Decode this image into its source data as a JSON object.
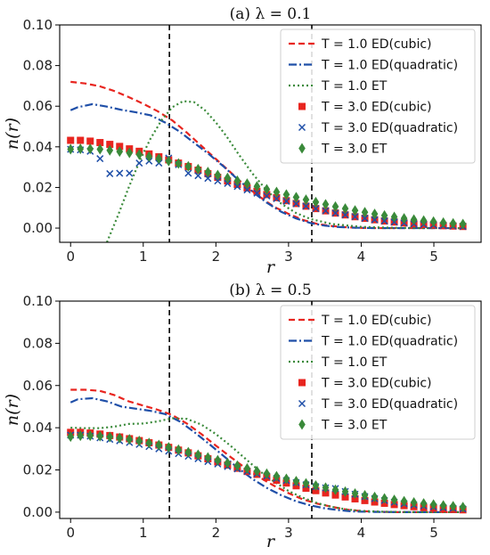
{
  "chart_data": [
    {
      "type": "line",
      "title": "(a) λ = 0.1",
      "xlabel": "r",
      "ylabel": "n(r)",
      "xlim": [
        -0.15,
        5.65
      ],
      "ylim": [
        -0.007,
        0.1
      ],
      "xticks": [
        0,
        1,
        2,
        3,
        4,
        5
      ],
      "xtick_labels": [
        "0",
        "1",
        "2",
        "3",
        "4",
        "5"
      ],
      "yticks": [
        0.0,
        0.02,
        0.04,
        0.06,
        0.08,
        0.1
      ],
      "ytick_labels": [
        "0.00",
        "0.02",
        "0.04",
        "0.06",
        "0.08",
        "0.10"
      ],
      "grid": false,
      "legend_position": "top-right",
      "vlines": [
        1.36,
        3.32
      ],
      "series": [
        {
          "name": "T = 1.0 ED(cubic)",
          "kind": "line",
          "style": "dashed",
          "color": "#e8251f",
          "x": [
            0,
            0.2,
            0.4,
            0.6,
            0.8,
            1.0,
            1.2,
            1.4,
            1.6,
            1.8,
            2.0,
            2.2,
            2.4,
            2.6,
            2.8,
            3.0,
            3.2,
            3.4,
            3.6,
            3.8,
            4.0,
            4.2,
            4.5,
            5.0,
            5.4
          ],
          "y": [
            0.072,
            0.0712,
            0.0698,
            0.0675,
            0.0645,
            0.0612,
            0.0575,
            0.053,
            0.047,
            0.0405,
            0.034,
            0.0275,
            0.021,
            0.0155,
            0.0105,
            0.007,
            0.004,
            0.002,
            0.001,
            0.0004,
            0.0001,
            0.0,
            0.0,
            0.0,
            0.0
          ]
        },
        {
          "name": "T = 1.0 ED(quadratic)",
          "kind": "line",
          "style": "dashdot",
          "color": "#1f4fa8",
          "x": [
            0,
            0.1,
            0.3,
            0.5,
            0.7,
            0.9,
            1.1,
            1.3,
            1.5,
            1.7,
            1.9,
            2.1,
            2.3,
            2.5,
            2.7,
            2.9,
            3.1,
            3.3,
            3.5,
            3.7,
            3.9,
            4.2,
            4.6,
            5.0,
            5.4
          ],
          "y": [
            0.058,
            0.0595,
            0.061,
            0.0598,
            0.0582,
            0.057,
            0.0555,
            0.052,
            0.0475,
            0.042,
            0.0365,
            0.0305,
            0.024,
            0.018,
            0.0125,
            0.008,
            0.0048,
            0.0025,
            0.0012,
            0.0005,
            0.0002,
            0.0,
            0.0,
            0.0,
            0.0
          ]
        },
        {
          "name": "T = 1.0 ET",
          "kind": "line",
          "style": "dotted",
          "color": "#3a8a3a",
          "x": [
            0.5,
            0.65,
            0.8,
            0.95,
            1.1,
            1.25,
            1.4,
            1.55,
            1.7,
            1.85,
            2.0,
            2.15,
            2.3,
            2.5,
            2.7,
            2.9,
            3.1,
            3.3,
            3.6,
            4.0,
            4.5,
            5.0,
            5.4
          ],
          "y": [
            -0.007,
            0.006,
            0.02,
            0.033,
            0.044,
            0.053,
            0.0595,
            0.0625,
            0.062,
            0.058,
            0.052,
            0.045,
            0.037,
            0.027,
            0.0185,
            0.012,
            0.0075,
            0.0045,
            0.002,
            0.0006,
            0.0001,
            0.0,
            0.0
          ]
        },
        {
          "name": "T = 3.0 ED(cubic)",
          "kind": "marker",
          "marker": "square",
          "color": "#e8251f",
          "x": [
            0.0,
            0.135,
            0.27,
            0.405,
            0.54,
            0.675,
            0.81,
            0.945,
            1.08,
            1.215,
            1.35,
            1.485,
            1.62,
            1.755,
            1.89,
            2.025,
            2.16,
            2.295,
            2.43,
            2.565,
            2.7,
            2.835,
            2.97,
            3.105,
            3.24,
            3.375,
            3.51,
            3.645,
            3.78,
            3.915,
            4.05,
            4.185,
            4.32,
            4.455,
            4.59,
            4.725,
            4.86,
            4.995,
            5.13,
            5.265,
            5.4
          ],
          "y": [
            0.0432,
            0.0432,
            0.0428,
            0.0421,
            0.0412,
            0.0402,
            0.039,
            0.0378,
            0.0365,
            0.0351,
            0.0336,
            0.032,
            0.0303,
            0.0285,
            0.0268,
            0.025,
            0.0232,
            0.0215,
            0.0198,
            0.0181,
            0.0165,
            0.015,
            0.0135,
            0.0121,
            0.0108,
            0.0096,
            0.0085,
            0.0074,
            0.0065,
            0.0056,
            0.0048,
            0.0041,
            0.0035,
            0.003,
            0.0025,
            0.0021,
            0.0018,
            0.0015,
            0.0012,
            0.001,
            0.0008
          ]
        },
        {
          "name": "T = 3.0 ED(quadratic)",
          "kind": "marker",
          "marker": "x",
          "color": "#1f4fa8",
          "x": [
            0.0,
            0.135,
            0.27,
            0.405,
            0.54,
            0.675,
            0.81,
            0.945,
            1.08,
            1.215,
            1.35,
            1.485,
            1.62,
            1.755,
            1.89,
            2.025,
            2.16,
            2.295,
            2.43,
            2.565,
            2.7,
            2.835,
            2.97,
            3.105,
            3.24,
            3.375,
            3.51,
            3.645,
            3.78,
            3.915,
            4.05,
            4.185,
            4.32,
            4.455,
            4.59,
            4.725,
            4.86,
            4.995,
            5.13,
            5.265,
            5.4
          ],
          "y": [
            0.0388,
            0.0385,
            0.0378,
            0.0342,
            0.0268,
            0.027,
            0.027,
            0.032,
            0.033,
            0.032,
            0.0345,
            0.0312,
            0.027,
            0.0258,
            0.0245,
            0.0232,
            0.022,
            0.0205,
            0.0188,
            0.0172,
            0.0158,
            0.0145,
            0.0132,
            0.012,
            0.0108,
            0.0096,
            0.0085,
            0.0074,
            0.0065,
            0.0056,
            0.0048,
            0.0041,
            0.0035,
            0.003,
            0.0025,
            0.0021,
            0.0018,
            0.0015,
            0.0012,
            0.001,
            0.0008
          ]
        },
        {
          "name": "T = 3.0 ET",
          "kind": "marker",
          "marker": "diamond",
          "color": "#3a8a3a",
          "x": [
            0.0,
            0.135,
            0.27,
            0.405,
            0.54,
            0.675,
            0.81,
            0.945,
            1.08,
            1.215,
            1.35,
            1.485,
            1.62,
            1.755,
            1.89,
            2.025,
            2.16,
            2.295,
            2.43,
            2.565,
            2.7,
            2.835,
            2.97,
            3.105,
            3.24,
            3.375,
            3.51,
            3.645,
            3.78,
            3.915,
            4.05,
            4.185,
            4.32,
            4.455,
            4.59,
            4.725,
            4.86,
            4.995,
            5.13,
            5.265,
            5.4
          ],
          "y": [
            0.0388,
            0.039,
            0.039,
            0.0388,
            0.0383,
            0.0377,
            0.037,
            0.0362,
            0.0352,
            0.0342,
            0.033,
            0.0318,
            0.0304,
            0.029,
            0.0276,
            0.0261,
            0.0247,
            0.0233,
            0.0219,
            0.0205,
            0.0191,
            0.0178,
            0.0165,
            0.0152,
            0.014,
            0.0128,
            0.0117,
            0.0106,
            0.0096,
            0.0087,
            0.0078,
            0.007,
            0.0062,
            0.0055,
            0.0048,
            0.0042,
            0.0037,
            0.0032,
            0.0027,
            0.0023,
            0.002
          ]
        }
      ]
    },
    {
      "type": "line",
      "title": "(b) λ = 0.5",
      "xlabel": "r",
      "ylabel": "n(r)",
      "xlim": [
        -0.15,
        5.65
      ],
      "ylim": [
        -0.003,
        0.1
      ],
      "xticks": [
        0,
        1,
        2,
        3,
        4,
        5
      ],
      "xtick_labels": [
        "0",
        "1",
        "2",
        "3",
        "4",
        "5"
      ],
      "yticks": [
        0.0,
        0.02,
        0.04,
        0.06,
        0.08,
        0.1
      ],
      "ytick_labels": [
        "0.00",
        "0.02",
        "0.04",
        "0.06",
        "0.08",
        "0.10"
      ],
      "grid": false,
      "legend_position": "top-right",
      "vlines": [
        1.36,
        3.32
      ],
      "series": [
        {
          "name": "T = 1.0 ED(cubic)",
          "kind": "line",
          "style": "dashed",
          "color": "#e8251f",
          "x": [
            0,
            0.2,
            0.4,
            0.6,
            0.8,
            1.0,
            1.2,
            1.4,
            1.6,
            1.8,
            2.0,
            2.2,
            2.4,
            2.6,
            2.8,
            3.0,
            3.2,
            3.4,
            3.6,
            3.8,
            4.0,
            4.2,
            4.5,
            5.0,
            5.4
          ],
          "y": [
            0.058,
            0.058,
            0.0575,
            0.0555,
            0.0525,
            0.0505,
            0.0485,
            0.046,
            0.042,
            0.037,
            0.0315,
            0.0262,
            0.021,
            0.0165,
            0.0125,
            0.009,
            0.006,
            0.004,
            0.0025,
            0.0012,
            0.0005,
            0.0002,
            0.0,
            0.0,
            0.0
          ]
        },
        {
          "name": "T = 1.0 ED(quadratic)",
          "kind": "line",
          "style": "dashdot",
          "color": "#1f4fa8",
          "x": [
            0,
            0.1,
            0.3,
            0.5,
            0.7,
            0.9,
            1.1,
            1.3,
            1.5,
            1.7,
            1.9,
            2.1,
            2.3,
            2.5,
            2.7,
            2.9,
            3.1,
            3.3,
            3.5,
            3.7,
            3.9,
            4.2,
            4.6,
            5.0,
            5.4
          ],
          "y": [
            0.052,
            0.0535,
            0.054,
            0.0525,
            0.05,
            0.049,
            0.048,
            0.0465,
            0.043,
            0.038,
            0.0325,
            0.0268,
            0.021,
            0.0158,
            0.0115,
            0.008,
            0.0052,
            0.0032,
            0.0018,
            0.0009,
            0.0003,
            0.0001,
            0.0,
            0.0,
            0.0
          ]
        },
        {
          "name": "T = 1.0 ET",
          "kind": "line",
          "style": "dotted",
          "color": "#3a8a3a",
          "x": [
            0,
            0.2,
            0.4,
            0.6,
            0.8,
            1.0,
            1.2,
            1.4,
            1.6,
            1.8,
            2.0,
            2.2,
            2.4,
            2.6,
            2.8,
            3.0,
            3.2,
            3.4,
            3.6,
            3.8,
            4.0,
            4.3,
            4.7,
            5.0,
            5.4
          ],
          "y": [
            0.04,
            0.0398,
            0.0398,
            0.0405,
            0.0418,
            0.042,
            0.043,
            0.0445,
            0.0442,
            0.0415,
            0.037,
            0.0315,
            0.0255,
            0.0195,
            0.0145,
            0.01,
            0.0068,
            0.0042,
            0.0025,
            0.0013,
            0.0006,
            0.0002,
            0.0,
            0.0,
            0.0
          ]
        },
        {
          "name": "T = 3.0 ED(cubic)",
          "kind": "marker",
          "marker": "square",
          "color": "#e8251f",
          "x": [
            0.0,
            0.135,
            0.27,
            0.405,
            0.54,
            0.675,
            0.81,
            0.945,
            1.08,
            1.215,
            1.35,
            1.485,
            1.62,
            1.755,
            1.89,
            2.025,
            2.16,
            2.295,
            2.43,
            2.565,
            2.7,
            2.835,
            2.97,
            3.105,
            3.24,
            3.375,
            3.51,
            3.645,
            3.78,
            3.915,
            4.05,
            4.185,
            4.32,
            4.455,
            4.59,
            4.725,
            4.86,
            4.995,
            5.13,
            5.265,
            5.4
          ],
          "y": [
            0.0378,
            0.0378,
            0.0375,
            0.037,
            0.0363,
            0.0356,
            0.0348,
            0.0339,
            0.0329,
            0.0318,
            0.0307,
            0.0294,
            0.0281,
            0.0267,
            0.0253,
            0.0238,
            0.0223,
            0.0208,
            0.0193,
            0.0179,
            0.0165,
            0.0151,
            0.0138,
            0.0125,
            0.0113,
            0.0102,
            0.0091,
            0.0081,
            0.0072,
            0.0063,
            0.0055,
            0.0048,
            0.0042,
            0.0036,
            0.0031,
            0.0026,
            0.0022,
            0.0019,
            0.0016,
            0.0013,
            0.0011
          ]
        },
        {
          "name": "T = 3.0 ED(quadratic)",
          "kind": "marker",
          "marker": "x",
          "color": "#1f4fa8",
          "x": [
            0.0,
            0.135,
            0.27,
            0.405,
            0.54,
            0.675,
            0.81,
            0.945,
            1.08,
            1.215,
            1.35,
            1.485,
            1.62,
            1.755,
            1.89,
            2.025,
            2.16,
            2.295,
            2.43,
            2.565,
            2.7,
            2.835,
            2.97,
            3.105,
            3.24,
            3.375,
            3.51,
            3.645,
            3.78,
            3.915,
            4.05,
            4.185,
            4.32,
            4.455,
            4.59,
            4.725,
            4.86,
            4.995,
            5.13,
            5.265,
            5.4
          ],
          "y": [
            0.0365,
            0.0365,
            0.036,
            0.0352,
            0.0345,
            0.0338,
            0.033,
            0.0321,
            0.0311,
            0.03,
            0.0289,
            0.0277,
            0.0265,
            0.0253,
            0.024,
            0.0228,
            0.0216,
            0.0205,
            0.0193,
            0.0182,
            0.0171,
            0.016,
            0.015,
            0.014,
            0.013,
            0.0121,
            0.0115,
            0.0112,
            0.0098,
            0.0085,
            0.0074,
            0.0064,
            0.0055,
            0.0047,
            0.004,
            0.0034,
            0.0029,
            0.0025,
            0.0021,
            0.0018,
            0.0015
          ]
        },
        {
          "name": "T = 3.0 ET",
          "kind": "marker",
          "marker": "diamond",
          "color": "#3a8a3a",
          "x": [
            0.0,
            0.135,
            0.27,
            0.405,
            0.54,
            0.675,
            0.81,
            0.945,
            1.08,
            1.215,
            1.35,
            1.485,
            1.62,
            1.755,
            1.89,
            2.025,
            2.16,
            2.295,
            2.43,
            2.565,
            2.7,
            2.835,
            2.97,
            3.105,
            3.24,
            3.375,
            3.51,
            3.645,
            3.78,
            3.915,
            4.05,
            4.185,
            4.32,
            4.455,
            4.59,
            4.725,
            4.86,
            4.995,
            5.13,
            5.265,
            5.4
          ],
          "y": [
            0.0358,
            0.0362,
            0.0362,
            0.036,
            0.0356,
            0.0351,
            0.0345,
            0.0337,
            0.0328,
            0.0318,
            0.0307,
            0.0296,
            0.0284,
            0.0272,
            0.0259,
            0.0246,
            0.0233,
            0.022,
            0.0207,
            0.0194,
            0.0182,
            0.017,
            0.0158,
            0.0147,
            0.0136,
            0.0126,
            0.0116,
            0.0106,
            0.0097,
            0.0088,
            0.008,
            0.0072,
            0.0065,
            0.0058,
            0.0052,
            0.0046,
            0.0041,
            0.0036,
            0.0032,
            0.0028,
            0.0024
          ]
        }
      ]
    }
  ]
}
